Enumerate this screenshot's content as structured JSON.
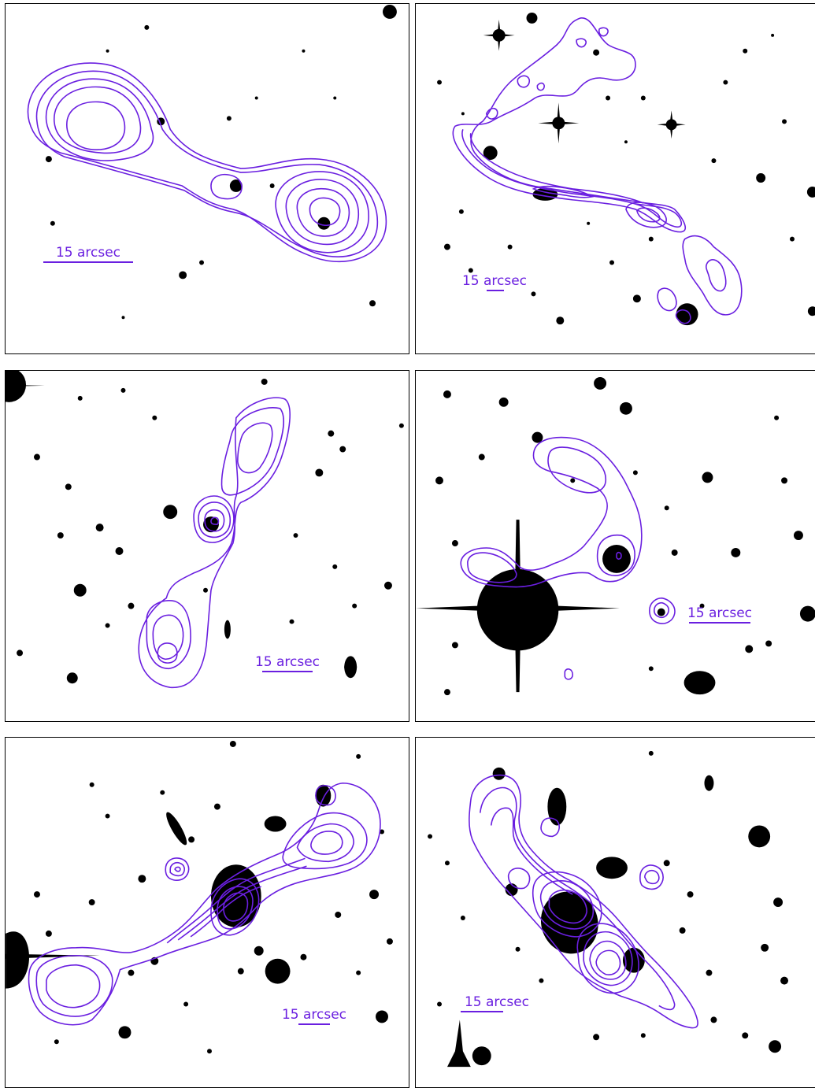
{
  "colors": {
    "contour": "#6a1fe0",
    "background": "#ffffff",
    "sources": "#000000",
    "frame": "#000000"
  },
  "panels": [
    {
      "scalebar_label": "15 arcsec"
    },
    {
      "scalebar_label": "15 arcsec"
    },
    {
      "scalebar_label": "15 arcsec"
    },
    {
      "scalebar_label": "15 arcsec"
    },
    {
      "scalebar_label": "15 arcsec"
    },
    {
      "scalebar_label": "15 arcsec"
    }
  ]
}
